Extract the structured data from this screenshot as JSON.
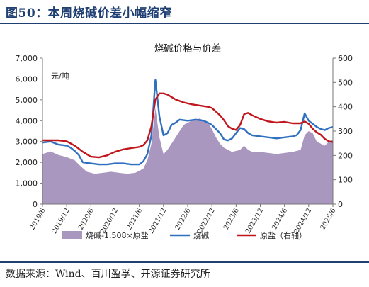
{
  "figure": {
    "title": "图50：本周烧碱价差小幅缩窄",
    "source": "数据来源：Wind、百川盈孚、开源证券研究所"
  },
  "chart_data": {
    "type": "line",
    "title": "烧碱价格与价差",
    "left_axis_unit": "元/吨",
    "left_ylim": [
      0,
      7000
    ],
    "left_ticks": [
      "0",
      "1,000",
      "2,000",
      "3,000",
      "4,000",
      "5,000",
      "6,000",
      "7,000"
    ],
    "right_ylim": [
      0,
      600
    ],
    "right_ticks": [
      "0",
      "100",
      "200",
      "300",
      "400",
      "500",
      "600"
    ],
    "x_range": [
      "2019-06",
      "2025-06"
    ],
    "x_tick_labels": [
      "2019/6",
      "2019/12",
      "2020/6",
      "2020/12",
      "2021/6",
      "2021/12",
      "2022/6",
      "2022/12",
      "2023/6",
      "2023/12",
      "2024/6",
      "2024/12",
      "2025/6"
    ],
    "legend_position": "bottom",
    "grid": false,
    "series": [
      {
        "name": "烧碱-1.508×原盐",
        "axis": "left",
        "type": "area",
        "color": "#a997c0",
        "points": [
          [
            "2019-06",
            2400
          ],
          [
            "2019-08",
            2520
          ],
          [
            "2019-10",
            2350
          ],
          [
            "2019-12",
            2250
          ],
          [
            "2020-02",
            2100
          ],
          [
            "2020-03",
            1900
          ],
          [
            "2020-05",
            1550
          ],
          [
            "2020-07",
            1450
          ],
          [
            "2020-09",
            1500
          ],
          [
            "2020-11",
            1550
          ],
          [
            "2021-01",
            1500
          ],
          [
            "2021-03",
            1450
          ],
          [
            "2021-05",
            1500
          ],
          [
            "2021-07",
            1700
          ],
          [
            "2021-08",
            2100
          ],
          [
            "2021-09",
            2900
          ],
          [
            "2021-10",
            4600
          ],
          [
            "2021-11",
            3200
          ],
          [
            "2021-12",
            2400
          ],
          [
            "2022-01",
            2600
          ],
          [
            "2022-02",
            2900
          ],
          [
            "2022-04",
            3500
          ],
          [
            "2022-05",
            3800
          ],
          [
            "2022-07",
            4000
          ],
          [
            "2022-09",
            4100
          ],
          [
            "2022-11",
            3900
          ],
          [
            "2022-12",
            3600
          ],
          [
            "2023-01",
            3200
          ],
          [
            "2023-02",
            2900
          ],
          [
            "2023-03",
            2700
          ],
          [
            "2023-05",
            2500
          ],
          [
            "2023-07",
            2600
          ],
          [
            "2023-08",
            2800
          ],
          [
            "2023-09",
            2600
          ],
          [
            "2023-10",
            2500
          ],
          [
            "2023-12",
            2500
          ],
          [
            "2024-02",
            2450
          ],
          [
            "2024-04",
            2400
          ],
          [
            "2024-06",
            2450
          ],
          [
            "2024-08",
            2500
          ],
          [
            "2024-10",
            2600
          ],
          [
            "2024-11",
            3300
          ],
          [
            "2024-12",
            3500
          ],
          [
            "2025-01",
            3400
          ],
          [
            "2025-02",
            3000
          ],
          [
            "2025-03",
            2900
          ],
          [
            "2025-04",
            2800
          ],
          [
            "2025-05",
            3000
          ],
          [
            "2025-06",
            3100
          ]
        ]
      },
      {
        "name": "烧碱",
        "axis": "left",
        "type": "line",
        "color": "#2f70c0",
        "points": [
          [
            "2019-06",
            2950
          ],
          [
            "2019-08",
            3000
          ],
          [
            "2019-10",
            2850
          ],
          [
            "2019-12",
            2800
          ],
          [
            "2020-01",
            2700
          ],
          [
            "2020-02",
            2550
          ],
          [
            "2020-03",
            2350
          ],
          [
            "2020-04",
            2000
          ],
          [
            "2020-06",
            1950
          ],
          [
            "2020-08",
            1900
          ],
          [
            "2020-10",
            1900
          ],
          [
            "2020-12",
            1950
          ],
          [
            "2021-02",
            1950
          ],
          [
            "2021-04",
            1900
          ],
          [
            "2021-06",
            1900
          ],
          [
            "2021-07",
            2050
          ],
          [
            "2021-08",
            2400
          ],
          [
            "2021-09",
            3300
          ],
          [
            "2021-10",
            5950
          ],
          [
            "2021-11",
            4200
          ],
          [
            "2021-12",
            3300
          ],
          [
            "2022-01",
            3400
          ],
          [
            "2022-02",
            3800
          ],
          [
            "2022-03",
            3900
          ],
          [
            "2022-04",
            4050
          ],
          [
            "2022-06",
            4000
          ],
          [
            "2022-08",
            4050
          ],
          [
            "2022-10",
            4000
          ],
          [
            "2022-11",
            3900
          ],
          [
            "2022-12",
            3800
          ],
          [
            "2023-01",
            3600
          ],
          [
            "2023-02",
            3400
          ],
          [
            "2023-03",
            3100
          ],
          [
            "2023-04",
            3050
          ],
          [
            "2023-05",
            3150
          ],
          [
            "2023-06",
            3400
          ],
          [
            "2023-07",
            3650
          ],
          [
            "2023-08",
            3600
          ],
          [
            "2023-09",
            3400
          ],
          [
            "2023-10",
            3300
          ],
          [
            "2023-12",
            3250
          ],
          [
            "2024-02",
            3200
          ],
          [
            "2024-04",
            3150
          ],
          [
            "2024-06",
            3200
          ],
          [
            "2024-08",
            3250
          ],
          [
            "2024-09",
            3300
          ],
          [
            "2024-10",
            3550
          ],
          [
            "2024-11",
            4350
          ],
          [
            "2024-12",
            4000
          ],
          [
            "2025-01",
            3850
          ],
          [
            "2025-02",
            3700
          ],
          [
            "2025-03",
            3600
          ],
          [
            "2025-04",
            3550
          ],
          [
            "2025-05",
            3650
          ],
          [
            "2025-06",
            3700
          ]
        ]
      },
      {
        "name": "原盐（右轴）",
        "axis": "right",
        "type": "line",
        "color": "#c0161c",
        "points": [
          [
            "2019-06",
            262
          ],
          [
            "2019-08",
            262
          ],
          [
            "2019-10",
            262
          ],
          [
            "2019-12",
            258
          ],
          [
            "2020-02",
            240
          ],
          [
            "2020-04",
            215
          ],
          [
            "2020-06",
            195
          ],
          [
            "2020-08",
            192
          ],
          [
            "2020-10",
            200
          ],
          [
            "2020-12",
            215
          ],
          [
            "2021-02",
            225
          ],
          [
            "2021-04",
            230
          ],
          [
            "2021-06",
            235
          ],
          [
            "2021-07",
            242
          ],
          [
            "2021-08",
            262
          ],
          [
            "2021-09",
            320
          ],
          [
            "2021-10",
            430
          ],
          [
            "2021-11",
            455
          ],
          [
            "2021-12",
            455
          ],
          [
            "2022-01",
            450
          ],
          [
            "2022-03",
            430
          ],
          [
            "2022-05",
            418
          ],
          [
            "2022-07",
            410
          ],
          [
            "2022-09",
            405
          ],
          [
            "2022-11",
            400
          ],
          [
            "2022-12",
            395
          ],
          [
            "2023-01",
            380
          ],
          [
            "2023-02",
            365
          ],
          [
            "2023-03",
            345
          ],
          [
            "2023-04",
            320
          ],
          [
            "2023-05",
            310
          ],
          [
            "2023-06",
            305
          ],
          [
            "2023-07",
            325
          ],
          [
            "2023-08",
            370
          ],
          [
            "2023-09",
            375
          ],
          [
            "2023-10",
            365
          ],
          [
            "2023-12",
            350
          ],
          [
            "2024-02",
            340
          ],
          [
            "2024-04",
            335
          ],
          [
            "2024-06",
            338
          ],
          [
            "2024-08",
            332
          ],
          [
            "2024-10",
            332
          ],
          [
            "2024-11",
            340
          ],
          [
            "2024-12",
            330
          ],
          [
            "2025-01",
            310
          ],
          [
            "2025-02",
            295
          ],
          [
            "2025-03",
            285
          ],
          [
            "2025-04",
            268
          ],
          [
            "2025-05",
            258
          ],
          [
            "2025-06",
            255
          ]
        ]
      }
    ]
  }
}
